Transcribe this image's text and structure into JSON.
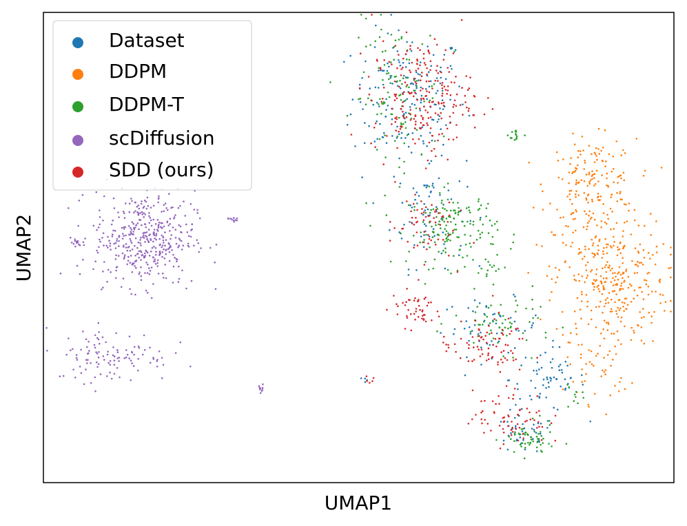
{
  "chart_data": {
    "type": "scatter",
    "title": "",
    "xlabel": "UMAP1",
    "ylabel": "UMAP2",
    "xlim": [
      0,
      100
    ],
    "ylim": [
      0,
      100
    ],
    "xticks": [],
    "yticks": [],
    "grid": false,
    "legend_position": "top-left",
    "series": [
      {
        "name": "Dataset",
        "color": "#1f77b4",
        "clusters": [
          {
            "cx": 58,
            "cy": 82,
            "sx": 4.5,
            "sy": 7,
            "n": 170
          },
          {
            "cx": 61,
            "cy": 58,
            "sx": 3,
            "sy": 6,
            "n": 75
          },
          {
            "cx": 71,
            "cy": 33,
            "sx": 4,
            "sy": 3,
            "n": 55
          },
          {
            "cx": 80,
            "cy": 22,
            "sx": 3,
            "sy": 3.5,
            "n": 65
          },
          {
            "cx": 76,
            "cy": 10,
            "sx": 2.5,
            "sy": 2,
            "n": 40
          },
          {
            "cx": 51,
            "cy": 22,
            "sx": 0.4,
            "sy": 0.8,
            "n": 4
          }
        ]
      },
      {
        "name": "DDPM",
        "color": "#ff7f0e",
        "clusters": [
          {
            "cx": 87,
            "cy": 63,
            "sx": 3.5,
            "sy": 5,
            "n": 180
          },
          {
            "cx": 90,
            "cy": 43,
            "sx": 4.5,
            "sy": 7,
            "n": 320
          },
          {
            "cx": 88,
            "cy": 25,
            "sx": 2.5,
            "sy": 4,
            "n": 50
          }
        ]
      },
      {
        "name": "DDPM-T",
        "color": "#2ca02c",
        "clusters": [
          {
            "cx": 56,
            "cy": 82,
            "sx": 3.5,
            "sy": 8,
            "n": 110
          },
          {
            "cx": 65,
            "cy": 54,
            "sx": 3.5,
            "sy": 4,
            "n": 150
          },
          {
            "cx": 73,
            "cy": 34,
            "sx": 4,
            "sy": 3,
            "n": 60
          },
          {
            "cx": 77,
            "cy": 9,
            "sx": 2,
            "sy": 1.8,
            "n": 55
          },
          {
            "cx": 71,
            "cy": 45,
            "sx": 1.5,
            "sy": 1.5,
            "n": 12
          },
          {
            "cx": 75,
            "cy": 74,
            "sx": 0.6,
            "sy": 0.8,
            "n": 14
          },
          {
            "cx": 84,
            "cy": 18,
            "sx": 0.8,
            "sy": 1.5,
            "n": 10
          }
        ]
      },
      {
        "name": "scDiffusion",
        "color": "#9467bd",
        "clusters": [
          {
            "cx": 16,
            "cy": 52,
            "sx": 4,
            "sy": 5,
            "n": 420
          },
          {
            "cx": 11,
            "cy": 27,
            "sx": 4.5,
            "sy": 2.8,
            "n": 110
          },
          {
            "cx": 5,
            "cy": 51,
            "sx": 0.5,
            "sy": 0.5,
            "n": 12
          },
          {
            "cx": 30,
            "cy": 56,
            "sx": 0.5,
            "sy": 0.4,
            "n": 10
          },
          {
            "cx": 34.5,
            "cy": 20,
            "sx": 0.5,
            "sy": 0.6,
            "n": 10
          }
        ]
      },
      {
        "name": "SDD (ours)",
        "color": "#d62728",
        "clusters": [
          {
            "cx": 60,
            "cy": 82,
            "sx": 4,
            "sy": 6,
            "n": 230
          },
          {
            "cx": 60,
            "cy": 55,
            "sx": 2.5,
            "sy": 4,
            "n": 60
          },
          {
            "cx": 59,
            "cy": 37,
            "sx": 2,
            "sy": 2,
            "n": 45
          },
          {
            "cx": 70,
            "cy": 29,
            "sx": 3.5,
            "sy": 3,
            "n": 80
          },
          {
            "cx": 74,
            "cy": 14,
            "sx": 3,
            "sy": 3,
            "n": 70
          },
          {
            "cx": 52,
            "cy": 22,
            "sx": 0.4,
            "sy": 0.8,
            "n": 5
          }
        ]
      }
    ]
  }
}
